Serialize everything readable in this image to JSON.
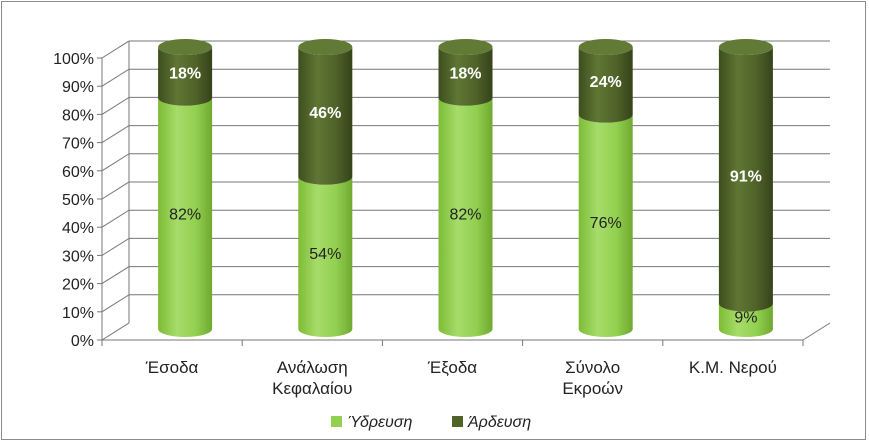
{
  "chart_data": {
    "type": "bar",
    "stacked": true,
    "percent": true,
    "three_d": true,
    "categories": [
      "Έσοδα",
      "Ανάλωση Κεφαλαίου",
      "Έξοδα",
      "Σύνολο Εκροών",
      "Κ.Μ. Νερού"
    ],
    "category_lines": [
      [
        "Έσοδα"
      ],
      [
        "Ανάλωση",
        "Κεφαλαίου"
      ],
      [
        "Έξοδα"
      ],
      [
        "Σύνολο",
        "Εκροών"
      ],
      [
        "Κ.Μ. Νερού"
      ]
    ],
    "series": [
      {
        "name": "Ύδρευση",
        "values": [
          82,
          54,
          82,
          76,
          9
        ],
        "labels": [
          "82%",
          "54%",
          "82%",
          "76%",
          "9%"
        ],
        "color": "#92d050"
      },
      {
        "name": "Άρδευση",
        "values": [
          18,
          46,
          18,
          24,
          91
        ],
        "labels": [
          "18%",
          "46%",
          "18%",
          "24%",
          "91%"
        ],
        "color": "#4f6228"
      }
    ],
    "yticks": [
      "0%",
      "10%",
      "20%",
      "30%",
      "40%",
      "50%",
      "60%",
      "70%",
      "80%",
      "90%",
      "100%"
    ],
    "ylim": [
      0,
      100
    ],
    "grid": true,
    "legend": "bottom"
  }
}
